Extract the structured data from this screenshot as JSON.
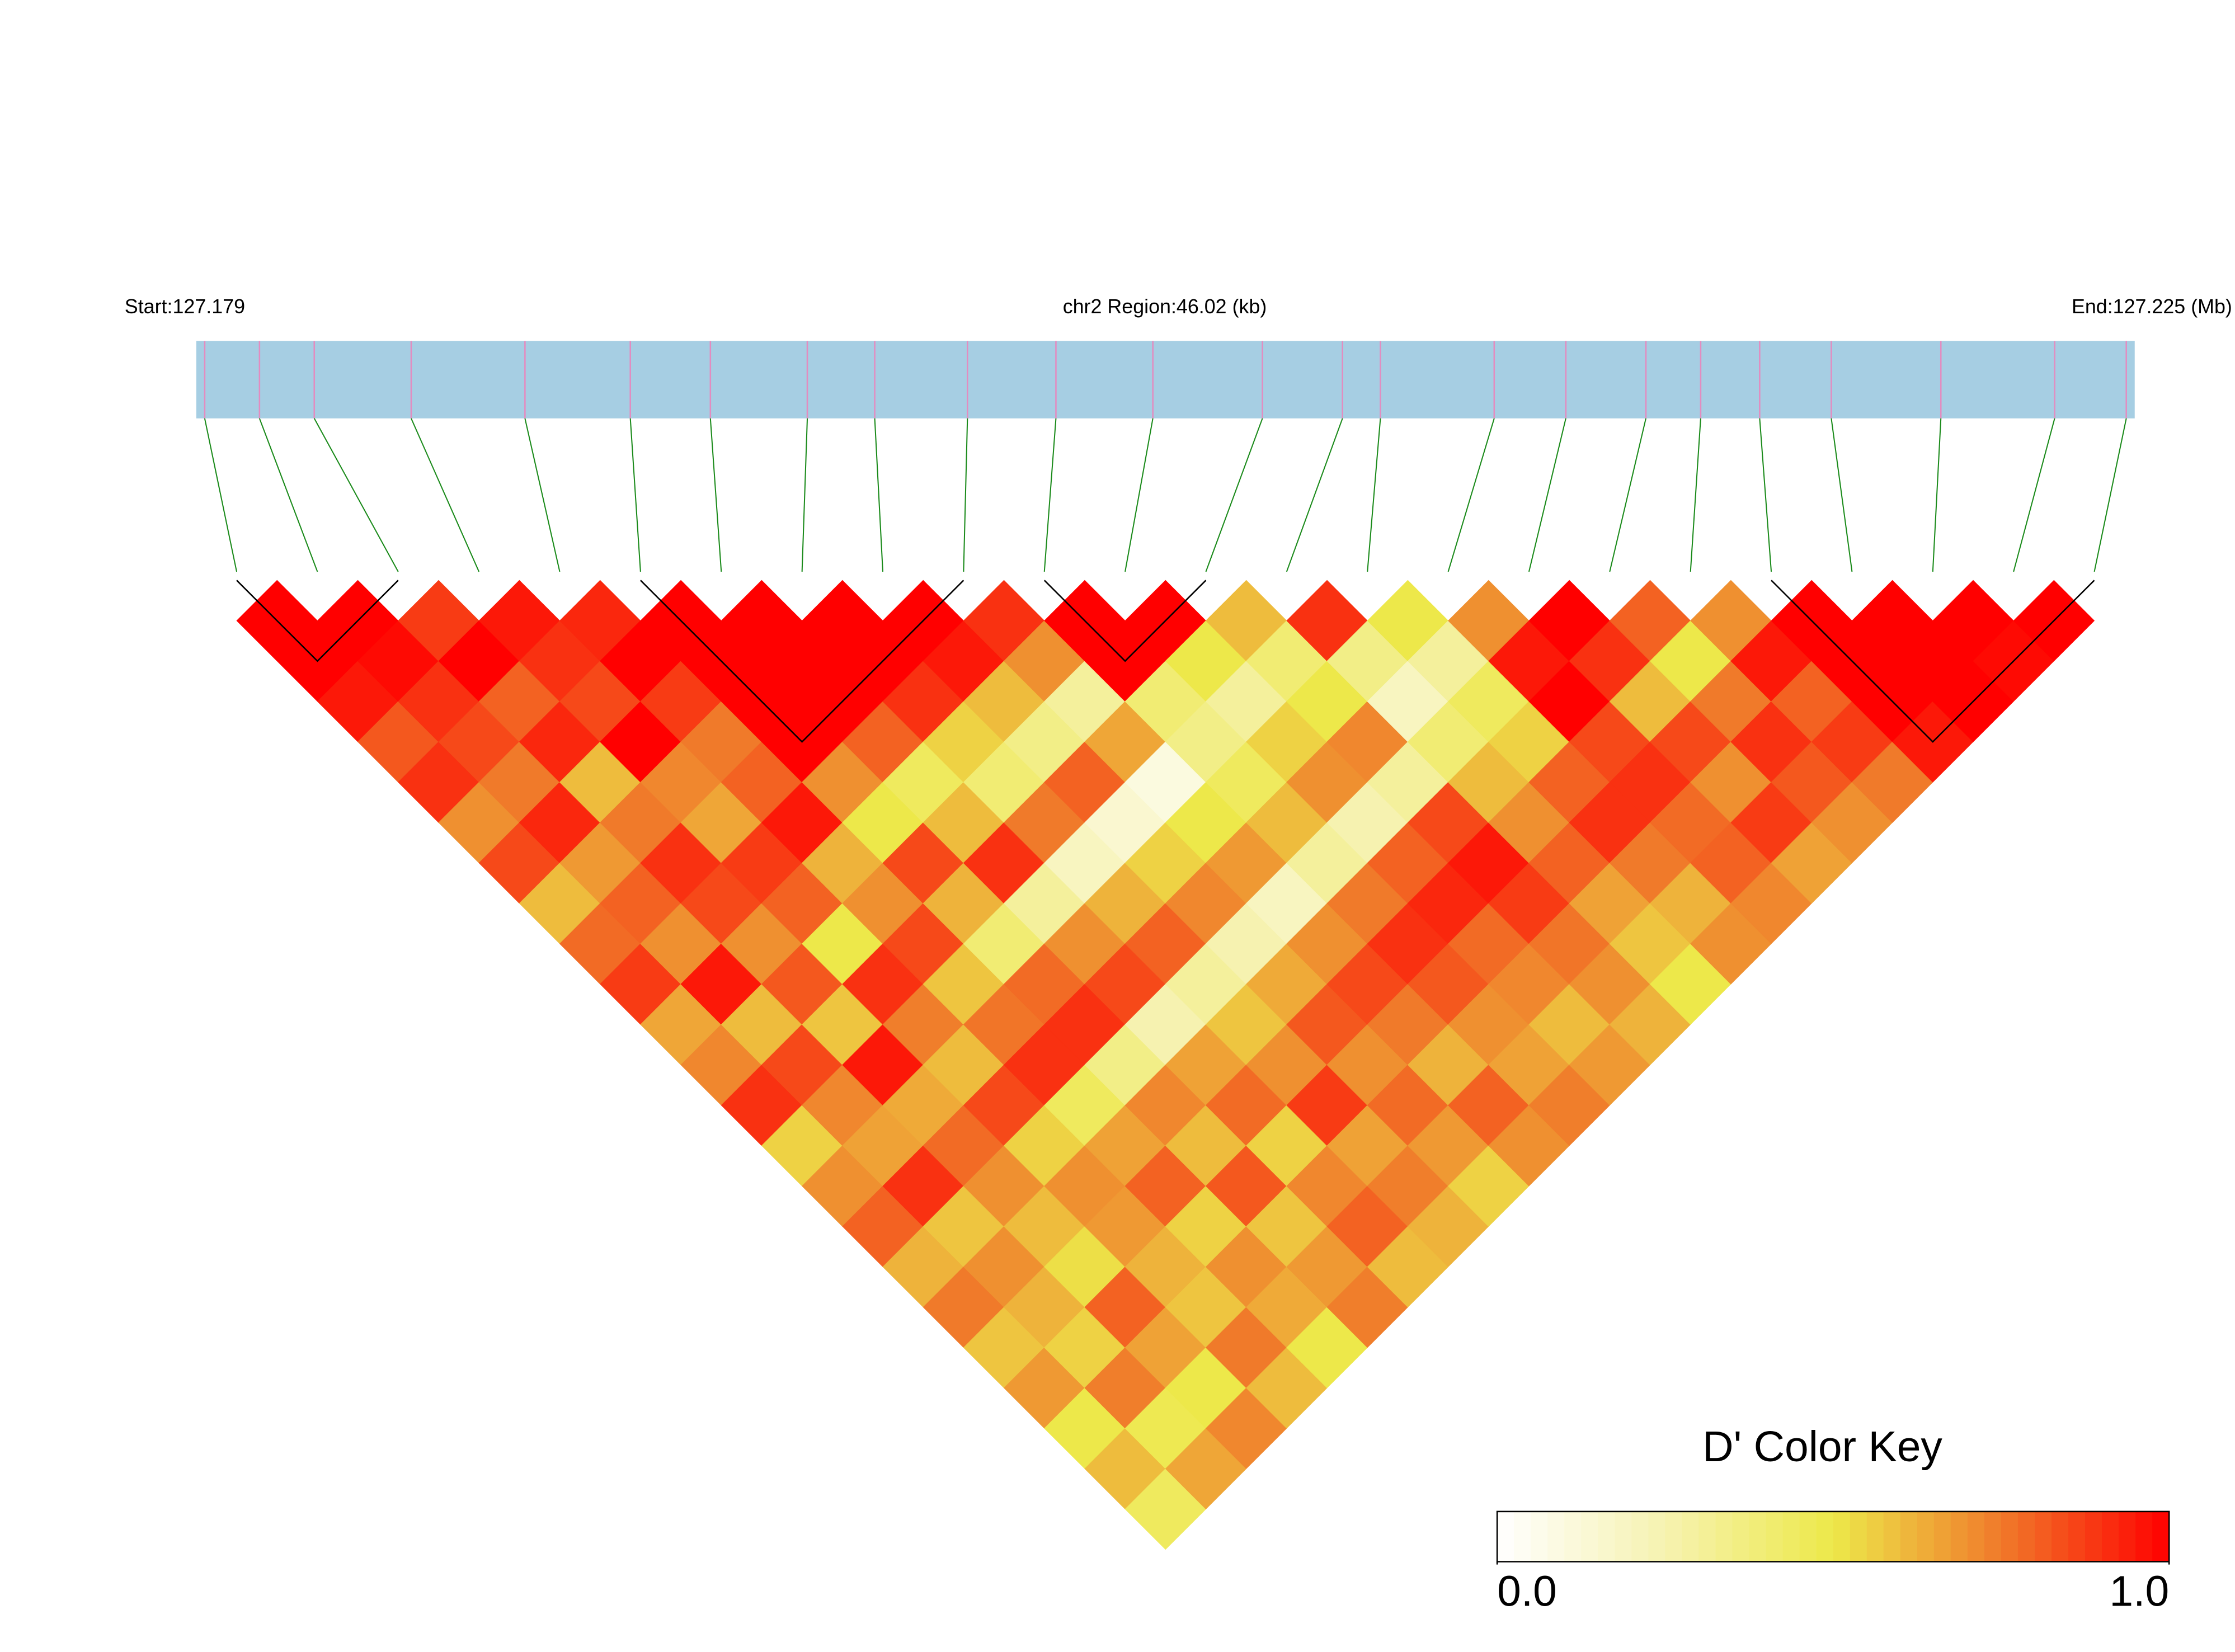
{
  "chart_data": {
    "type": "ld-heatmap",
    "start_label": "Start:127.179",
    "region_label": "chr2 Region:46.02 (kb)",
    "end_label": "End:127.225 (Mb)",
    "key_title": "D' Color Key",
    "xlim": [
      127.179,
      127.225
    ],
    "positions": [
      127.1792,
      127.1805,
      127.1818,
      127.1841,
      127.1868,
      127.1893,
      127.1912,
      127.1935,
      127.1951,
      127.1973,
      127.1994,
      127.2017,
      127.2043,
      127.2062,
      127.2071,
      127.2098,
      127.2115,
      127.2134,
      127.2147,
      127.2161,
      127.2178,
      127.2204,
      127.2231,
      127.2248
    ],
    "dprime": [
      [
        1,
        1,
        0.95,
        0.82,
        0.9,
        0.7,
        0.85,
        0.6,
        0.78,
        0.88,
        0.65,
        0.72,
        0.9,
        0.55,
        0.7,
        0.8,
        0.62,
        0.75,
        0.58,
        0.68,
        0.5,
        0.6,
        0.45
      ],
      [
        1,
        0.98,
        0.9,
        0.85,
        0.75,
        0.92,
        0.68,
        0.8,
        0.7,
        0.95,
        0.6,
        0.85,
        0.72,
        0.66,
        0.9,
        0.58,
        0.7,
        0.62,
        0.55,
        0.74,
        0.48,
        0.65
      ],
      [
        0.88,
        1,
        0.8,
        0.92,
        0.6,
        0.75,
        0.9,
        0.85,
        0.7,
        0.82,
        0.58,
        0.95,
        0.64,
        0.78,
        0.7,
        0.6,
        0.52,
        0.8,
        0.66,
        0.5,
        0.72
      ],
      [
        0.95,
        0.9,
        0.85,
        1,
        0.72,
        0.65,
        0.88,
        0.8,
        0.5,
        0.9,
        0.74,
        0.6,
        0.85,
        0.55,
        0.7,
        0.68,
        0.62,
        0.58,
        0.75,
        0.6
      ],
      [
        0.92,
        1,
        0.88,
        0.75,
        0.8,
        0.95,
        0.62,
        0.7,
        0.85,
        0.58,
        0.76,
        0.9,
        0.45,
        0.66,
        0.8,
        0.55,
        0.7,
        0.64,
        0.5
      ],
      [
        1,
        1,
        1,
        1,
        0.7,
        0.5,
        0.85,
        0.62,
        0.4,
        0.78,
        0.9,
        0.35,
        0.72,
        0.6,
        0.82,
        0.58,
        0.68,
        0.74
      ],
      [
        1,
        1,
        1,
        0.8,
        0.45,
        0.6,
        0.9,
        0.3,
        0.7,
        0.85,
        0.25,
        0.66,
        0.78,
        0.55,
        0.72,
        0.8,
        0.6
      ],
      [
        1,
        1,
        0.9,
        0.55,
        0.4,
        0.75,
        0.2,
        0.62,
        0.8,
        0.3,
        0.58,
        0.7,
        0.88,
        0.66,
        0.74,
        0.62
      ],
      [
        1,
        0.95,
        0.6,
        0.35,
        0.8,
        0.15,
        0.55,
        0.72,
        0.25,
        0.64,
        0.82,
        0.7,
        0.78,
        0.68,
        0.55
      ],
      [
        0.9,
        0.7,
        0.3,
        0.65,
        0.1,
        0.5,
        0.68,
        0.2,
        0.7,
        0.85,
        0.75,
        0.62,
        0.8,
        0.7
      ],
      [
        1,
        1,
        0.4,
        0.35,
        0.45,
        0.6,
        0.3,
        0.75,
        0.9,
        0.82,
        0.7,
        0.66,
        0.74
      ],
      [
        1,
        0.5,
        0.3,
        0.55,
        0.7,
        0.25,
        0.8,
        0.92,
        0.78,
        0.72,
        0.6,
        0.68
      ],
      [
        0.6,
        0.4,
        0.5,
        0.72,
        0.3,
        0.85,
        0.95,
        0.88,
        0.76,
        0.7,
        0.62
      ],
      [
        0.9,
        0.35,
        0.2,
        0.4,
        0.6,
        0.7,
        0.8,
        0.66,
        0.58,
        0.5
      ],
      [
        0.5,
        0.3,
        0.45,
        0.55,
        0.8,
        0.9,
        0.75,
        0.62,
        0.7
      ],
      [
        0.7,
        0.95,
        1,
        0.85,
        0.9,
        0.78,
        0.8,
        0.72
      ],
      [
        1,
        0.9,
        0.6,
        0.85,
        0.7,
        0.88,
        0.66
      ],
      [
        0.8,
        0.5,
        0.75,
        0.9,
        0.82,
        0.7
      ],
      [
        0.7,
        0.95,
        0.8,
        0.88,
        0.75
      ],
      [
        1,
        1,
        1,
        0.95
      ],
      [
        1,
        1,
        1
      ],
      [
        1,
        0.98
      ],
      [
        1
      ]
    ],
    "blocks": [
      [
        0,
        2
      ],
      [
        5,
        9
      ],
      [
        10,
        12
      ],
      [
        19,
        23
      ]
    ],
    "colormap": [
      "#ffffff",
      "#f6f2b0",
      "#ede84a",
      "#f07a2a",
      "#ff0000"
    ],
    "keylim": [
      0,
      1
    ],
    "keyticks": [
      {
        "value": 0,
        "label": "0.0"
      },
      {
        "value": 1,
        "label": "1.0"
      }
    ],
    "bar_color": "#a6cee3",
    "snp_color": "#e38cc0",
    "link_color": "#1a8a1a"
  }
}
